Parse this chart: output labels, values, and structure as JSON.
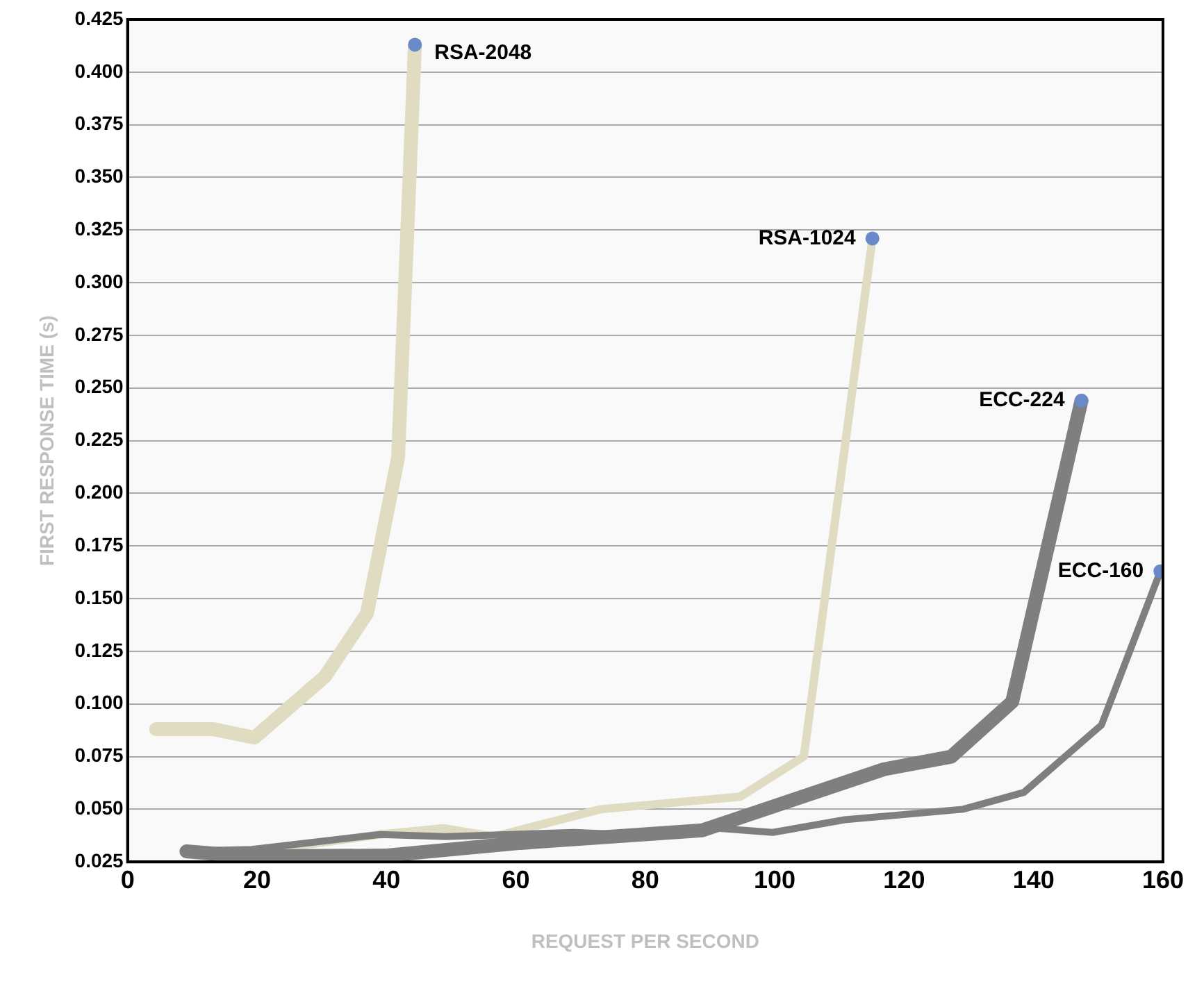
{
  "chart_data": {
    "type": "line",
    "xlabel": "REQUEST PER SECOND",
    "ylabel": "FIRST RESPONSE TIME (s)",
    "xlim": [
      0,
      160
    ],
    "xticks": [
      0,
      20,
      40,
      60,
      80,
      100,
      120,
      140,
      160
    ],
    "ylim": [
      0.025,
      0.425
    ],
    "yticks": [
      {
        "value": 0.025,
        "label": "0.025"
      },
      {
        "value": 0.05,
        "label": "0.050"
      },
      {
        "value": 0.075,
        "label": "0.075"
      },
      {
        "value": 0.1,
        "label": "0.100"
      },
      {
        "value": 0.125,
        "label": "0.125"
      },
      {
        "value": 0.15,
        "label": "0.150"
      },
      {
        "value": 0.175,
        "label": "0.175"
      },
      {
        "value": 0.2,
        "label": "0.200"
      },
      {
        "value": 0.225,
        "label": "0.225"
      },
      {
        "value": 0.25,
        "label": "0.250"
      },
      {
        "value": 0.275,
        "label": "0.275"
      },
      {
        "value": 0.3,
        "label": "0.300"
      },
      {
        "value": 0.325,
        "label": "0.325"
      },
      {
        "value": 0.35,
        "label": "0.350"
      },
      {
        "value": 0.375,
        "label": "0.375"
      },
      {
        "value": 0.4,
        "label": "0.400"
      },
      {
        "value": 0.425,
        "label": "0.425"
      }
    ],
    "grid": "y",
    "legend": false,
    "series": [
      {
        "name": "RSA-2048",
        "color": "#dfdcc1",
        "x": [
          4.4,
          13.3,
          19.6,
          30.5,
          37,
          41.8,
          44.4
        ],
        "values": [
          0.088,
          0.088,
          0.084,
          0.113,
          0.143,
          0.217,
          0.413
        ]
      },
      {
        "name": "RSA-1024",
        "color": "#dfdcc1",
        "x": [
          9.1,
          18.5,
          29.6,
          39,
          48.8,
          56.6,
          73.1,
          94.7,
          104.5,
          115.1
        ],
        "values": [
          0.03,
          0.0295,
          0.034,
          0.038,
          0.041,
          0.037,
          0.05,
          0.056,
          0.075,
          0.321
        ]
      },
      {
        "name": "ECC-224",
        "color": "#7f7f7f",
        "x": [
          9.1,
          18.5,
          39.8,
          60.7,
          88.8,
          116.9,
          127.3,
          136.7,
          147.4
        ],
        "values": [
          0.03,
          0.0276,
          0.028,
          0.034,
          0.04,
          0.069,
          0.075,
          0.101,
          0.244
        ]
      },
      {
        "name": "ECC-160",
        "color": "#7f7f7f",
        "x": [
          9.1,
          19.2,
          39,
          49.2,
          69,
          79.4,
          88.8,
          99.7,
          110.8,
          129.1,
          138.5,
          150.5,
          159.6
        ],
        "values": [
          0.0302,
          0.0309,
          0.038,
          0.037,
          0.039,
          0.0377,
          0.0415,
          0.039,
          0.045,
          0.05,
          0.058,
          0.09,
          0.163
        ]
      }
    ]
  }
}
